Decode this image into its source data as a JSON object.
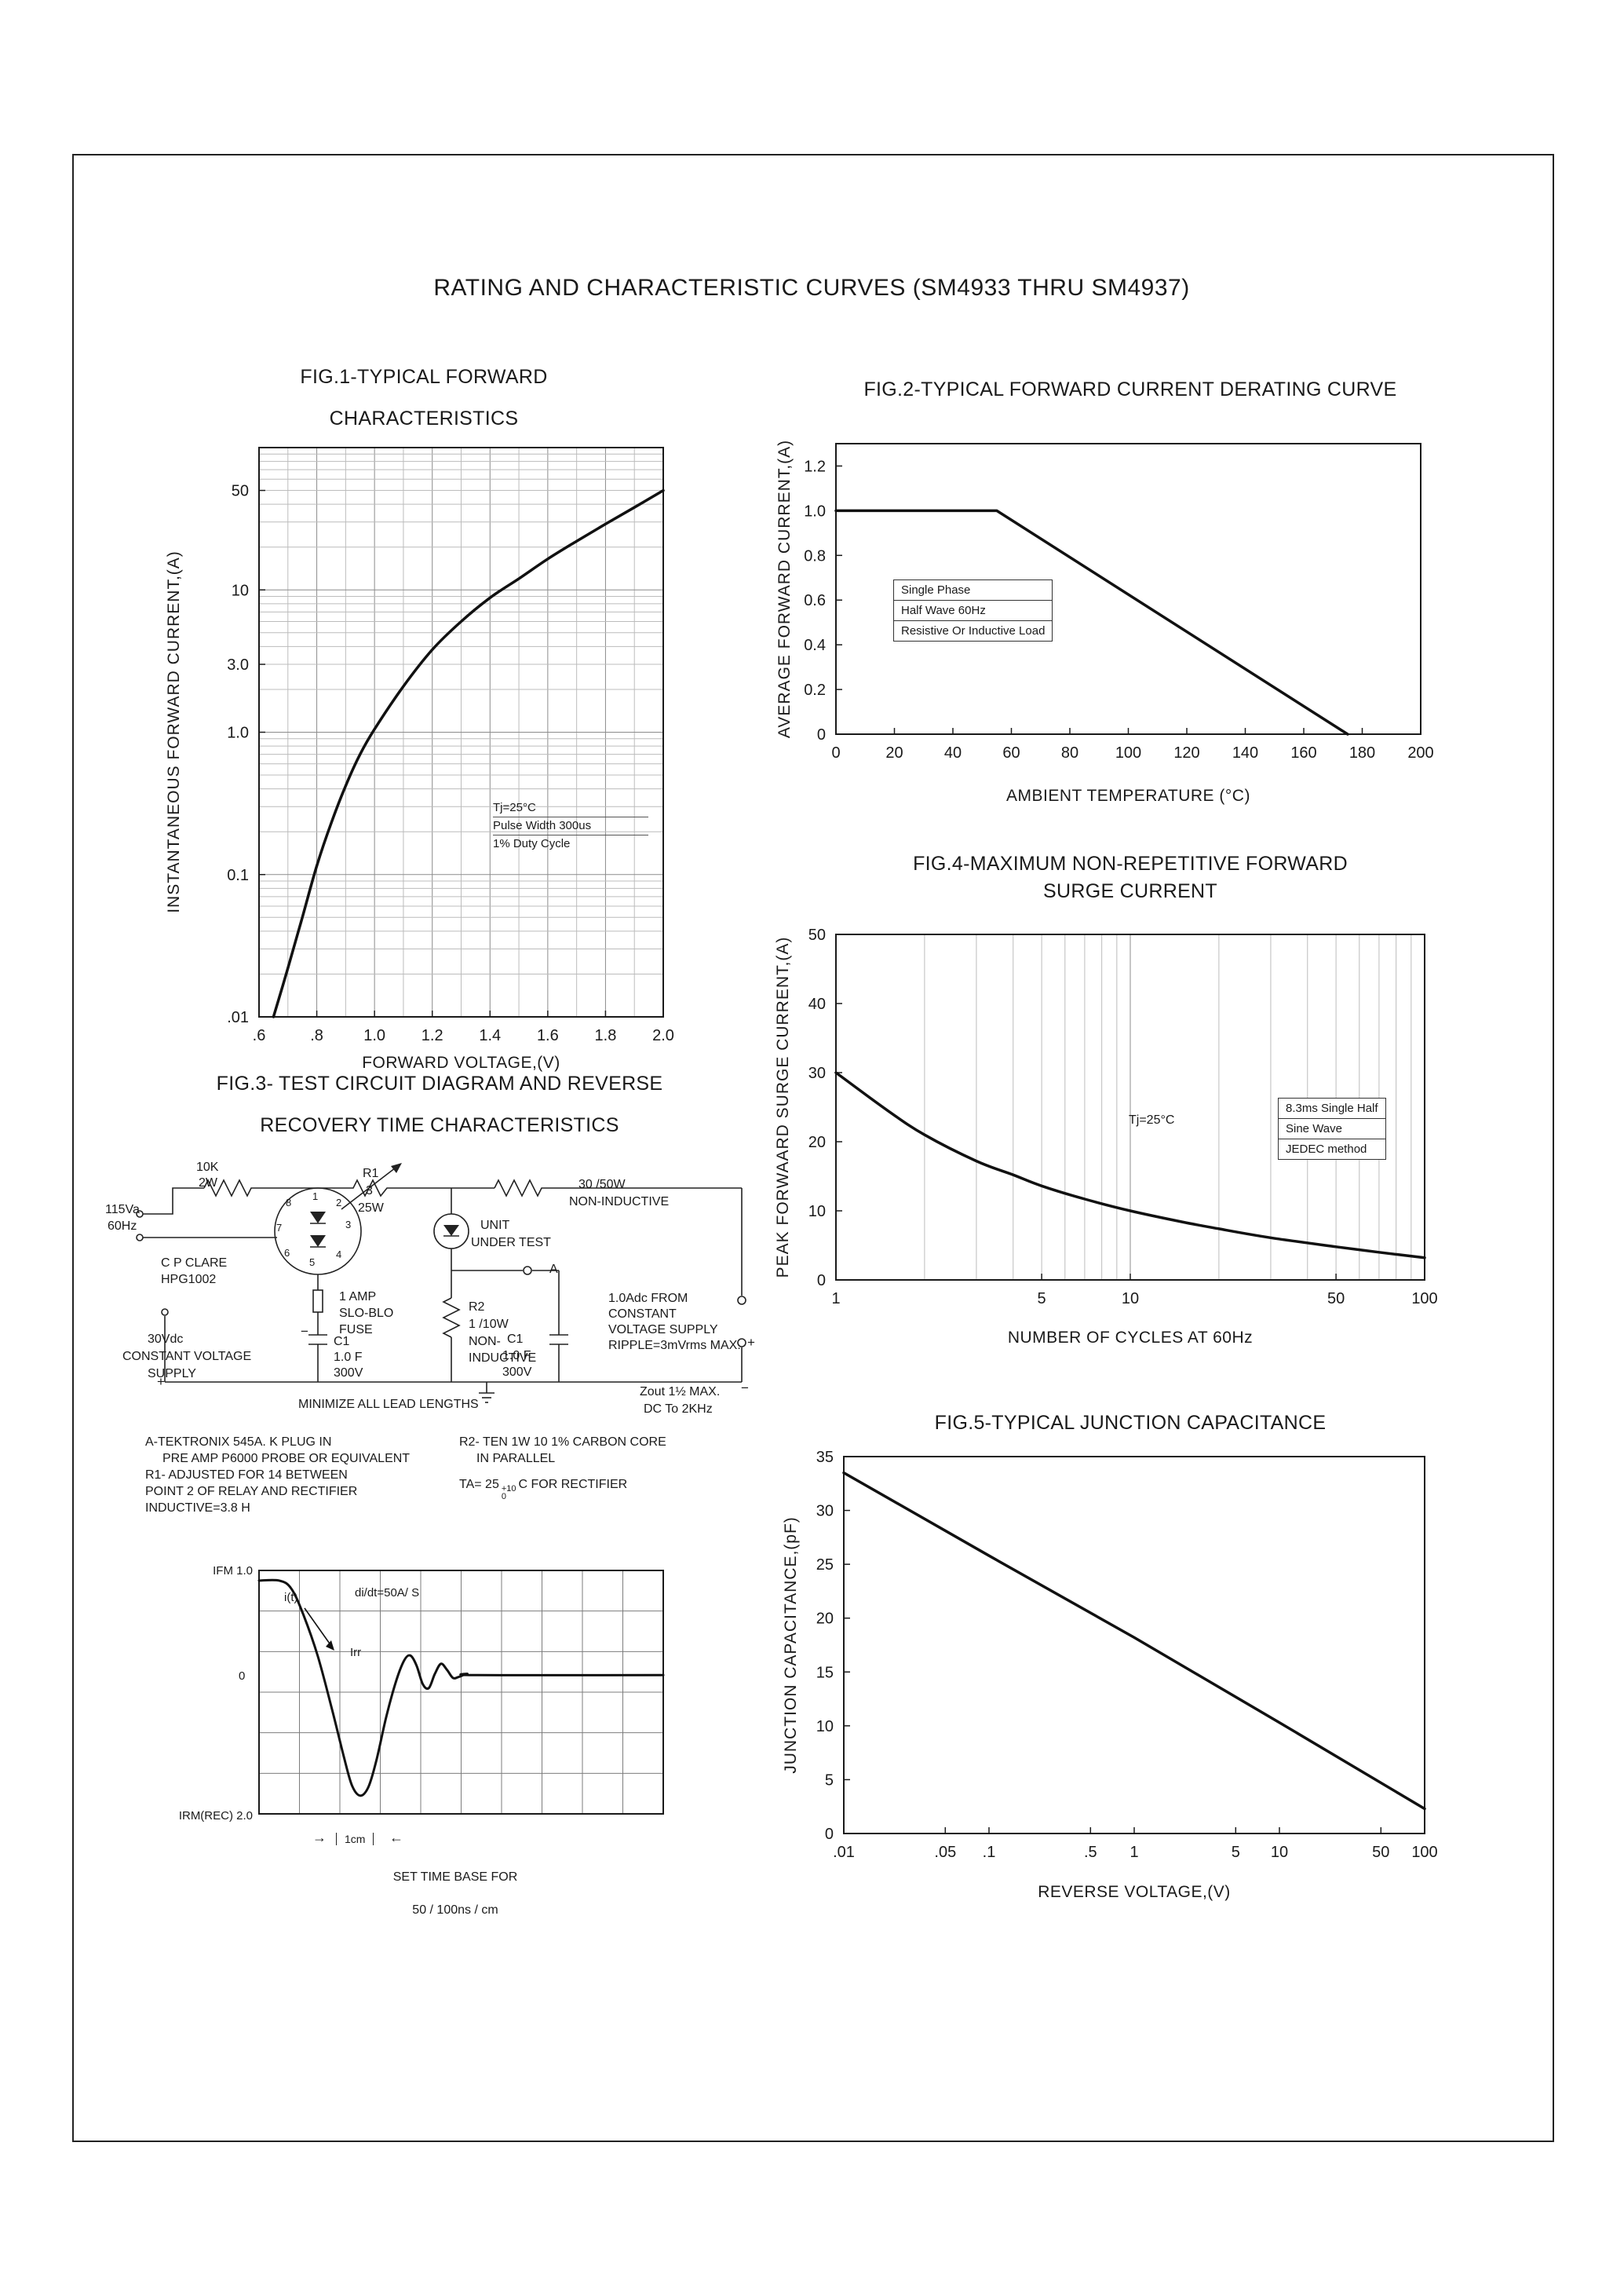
{
  "page": {
    "title": "RATING AND CHARACTERISTIC CURVES (SM4933 THRU SM4937)"
  },
  "fig3": {
    "title_line1": "FIG.3- TEST CIRCUIT DIAGRAM AND REVERSE",
    "title_line2": "RECOVERY TIME CHARACTERISTICS"
  },
  "icons": {
    "arrow_right": "→",
    "arrow_left": "←"
  },
  "circuit": {
    "labels": {
      "r_top1": "10K",
      "r_top2": "2W",
      "mains1": "115Va",
      "mains2": "60Hz",
      "relay1": "C P CLARE",
      "relay2": "HPG1002",
      "r1_1": "R1",
      "r1_2": "3",
      "r1_3": "25W",
      "load1": "30  /50W",
      "load2": "NON-INDUCTIVE",
      "uut1": "UNIT",
      "uut2": "UNDER TEST",
      "fuse1": "1 AMP",
      "fuse2": "SLO-BLO",
      "fuse3": "FUSE",
      "r2_1": "R2",
      "r2_2": "1  /10W",
      "r2_3": "NON-",
      "r2_4": "INDUCTIVE",
      "c1l_1": "C1",
      "c1l_2": "1.0  F",
      "c1l_3": "300V",
      "c1r_1": "C1",
      "c1r_2": "1.0  F",
      "c1r_3": "300V",
      "supply1": "30Vdc",
      "supply2": "CONSTANT VOLTAGE",
      "supply3": "SUPPLY",
      "minimize": "MINIMIZE ALL LEAD LENGTHS",
      "src1": "1.0Adc FROM",
      "src2": "CONSTANT",
      "src3": "VOLTAGE SUPPLY",
      "src4": "RIPPLE=3mVrms MAX.",
      "zout1": "Zout 1½  MAX.",
      "zout2": "DC To 2KHz",
      "point_a": "A"
    },
    "pins": [
      "1",
      "2",
      "3",
      "4",
      "5",
      "6",
      "7",
      "8"
    ],
    "signs": {
      "m1": "−",
      "p1": "+",
      "p2": "+",
      "m2": "−"
    },
    "notes_left": [
      "A-TEKTRONIX 545A. K PLUG IN",
      "PRE AMP P6000 PROBE OR EQUIVALENT",
      "R1- ADJUSTED FOR 14  BETWEEN",
      "POINT 2 OF RELAY AND RECTIFIER",
      "INDUCTIVE=3.8  H"
    ],
    "notes_right": [
      "R2- TEN 1W 10   1% CARBON CORE",
      "IN PARALLEL"
    ],
    "ta": {
      "pre": "TA= 25",
      "sup": "+10",
      "sub": "0",
      "post": "C FOR RECTIFIER"
    }
  },
  "chart_data": [
    {
      "type": "line",
      "title_line1": "FIG.1-TYPICAL FORWARD",
      "title_line2": "CHARACTERISTICS",
      "xlabel": "FORWARD VOLTAGE,(V)",
      "ylabel": "INSTANTANEOUS FORWARD CURRENT,(A)",
      "annotation": [
        "Tj=25°C",
        "Pulse Width 300us",
        "1% Duty Cycle"
      ],
      "x": {
        "type": "linear",
        "min": 0.6,
        "max": 2.0,
        "grid_step": 0.1,
        "major_step": 0.2,
        "ticks": [
          [
            0.6,
            ".6"
          ],
          [
            0.8,
            ".8"
          ],
          [
            1.0,
            "1.0"
          ],
          [
            1.2,
            "1.2"
          ],
          [
            1.4,
            "1.4"
          ],
          [
            1.6,
            "1.6"
          ],
          [
            1.8,
            "1.8"
          ],
          [
            2.0,
            "2.0"
          ]
        ]
      },
      "y": {
        "type": "log",
        "min": 0.01,
        "max": 100,
        "grid": "log",
        "ticks": [
          [
            50,
            "50"
          ],
          [
            10,
            "10"
          ],
          [
            3,
            "3.0"
          ],
          [
            1,
            "1.0"
          ],
          [
            0.1,
            "0.1"
          ],
          [
            0.01,
            ".01"
          ]
        ]
      },
      "series": [
        {
          "name": "forward-characteristic",
          "smooth": true,
          "points": [
            [
              0.65,
              0.01
            ],
            [
              0.7,
              0.022
            ],
            [
              0.75,
              0.05
            ],
            [
              0.8,
              0.115
            ],
            [
              0.85,
              0.23
            ],
            [
              0.9,
              0.42
            ],
            [
              0.95,
              0.7
            ],
            [
              1.0,
              1.05
            ],
            [
              1.1,
              2.1
            ],
            [
              1.2,
              3.8
            ],
            [
              1.3,
              6.0
            ],
            [
              1.4,
              8.8
            ],
            [
              1.5,
              12
            ],
            [
              1.6,
              16.5
            ],
            [
              1.7,
              22
            ],
            [
              1.8,
              29
            ],
            [
              1.9,
              38
            ],
            [
              2.0,
              50
            ]
          ]
        }
      ]
    },
    {
      "type": "line",
      "title": "FIG.2-TYPICAL FORWARD CURRENT DERATING CURVE",
      "xlabel": "AMBIENT TEMPERATURE (°C)",
      "ylabel": "AVERAGE FORWARD CURRENT,(A)",
      "annotation": [
        "Single Phase",
        "Half Wave 60Hz",
        "Resistive Or Inductive Load"
      ],
      "x": {
        "type": "linear",
        "min": 0,
        "max": 200,
        "ticks": [
          [
            0,
            "0"
          ],
          [
            20,
            "20"
          ],
          [
            40,
            "40"
          ],
          [
            60,
            "60"
          ],
          [
            80,
            "80"
          ],
          [
            100,
            "100"
          ],
          [
            120,
            "120"
          ],
          [
            140,
            "140"
          ],
          [
            160,
            "160"
          ],
          [
            180,
            "180"
          ],
          [
            200,
            "200"
          ]
        ]
      },
      "y": {
        "type": "linear",
        "min": 0,
        "max": 1.3,
        "ticks": [
          [
            0,
            "0"
          ],
          [
            0.2,
            "0.2"
          ],
          [
            0.4,
            "0.4"
          ],
          [
            0.6,
            "0.6"
          ],
          [
            0.8,
            "0.8"
          ],
          [
            1.0,
            "1.0"
          ],
          [
            1.2,
            "1.2"
          ]
        ]
      },
      "series": [
        {
          "name": "derating-curve",
          "smooth": false,
          "points": [
            [
              0,
              1.0
            ],
            [
              55,
              1.0
            ],
            [
              175,
              0
            ]
          ]
        }
      ]
    },
    {
      "type": "line",
      "title_line1": "FIG.4-MAXIMUM NON-REPETITIVE FORWARD",
      "title_line2": "SURGE CURRENT",
      "xlabel": "NUMBER OF CYCLES AT 60Hz",
      "ylabel": "PEAK FORWAARD SURGE CURRENT,(A)",
      "annotation_tj": "Tj=25°C",
      "annotation_box": [
        "8.3ms Single Half",
        "Sine Wave",
        "JEDEC method"
      ],
      "x": {
        "type": "log",
        "min": 1,
        "max": 100,
        "grid": "log",
        "ticks": [
          [
            1,
            "1"
          ],
          [
            5,
            "5"
          ],
          [
            10,
            "10"
          ],
          [
            50,
            "50"
          ],
          [
            100,
            "100"
          ]
        ]
      },
      "y": {
        "type": "linear",
        "min": 0,
        "max": 50,
        "ticks": [
          [
            0,
            "0"
          ],
          [
            10,
            "10"
          ],
          [
            20,
            "20"
          ],
          [
            30,
            "30"
          ],
          [
            40,
            "40"
          ],
          [
            50,
            "50"
          ]
        ]
      },
      "series": [
        {
          "name": "surge-current",
          "smooth": true,
          "points": [
            [
              1,
              30
            ],
            [
              1.5,
              24.5
            ],
            [
              2,
              21
            ],
            [
              3,
              17.2
            ],
            [
              4,
              15.2
            ],
            [
              5,
              13.6
            ],
            [
              7,
              11.7
            ],
            [
              10,
              10
            ],
            [
              15,
              8.4
            ],
            [
              20,
              7.4
            ],
            [
              30,
              6.1
            ],
            [
              50,
              4.8
            ],
            [
              70,
              4.0
            ],
            [
              100,
              3.2
            ]
          ]
        }
      ]
    },
    {
      "type": "line",
      "title": "FIG.5-TYPICAL JUNCTION CAPACITANCE",
      "xlabel": "REVERSE VOLTAGE,(V)",
      "ylabel": "JUNCTION CAPACITANCE,(pF)",
      "x": {
        "type": "log",
        "min": 0.01,
        "max": 100,
        "ticks": [
          [
            0.01,
            ".01"
          ],
          [
            0.05,
            ".05"
          ],
          [
            0.1,
            ".1"
          ],
          [
            0.5,
            ".5"
          ],
          [
            1,
            "1"
          ],
          [
            5,
            "5"
          ],
          [
            10,
            "10"
          ],
          [
            50,
            "50"
          ],
          [
            100,
            "100"
          ]
        ]
      },
      "y": {
        "type": "linear",
        "min": 0,
        "max": 35,
        "ticks": [
          [
            0,
            "0"
          ],
          [
            5,
            "5"
          ],
          [
            10,
            "10"
          ],
          [
            15,
            "15"
          ],
          [
            20,
            "20"
          ],
          [
            25,
            "25"
          ],
          [
            30,
            "30"
          ],
          [
            35,
            "35"
          ]
        ]
      },
      "series": [
        {
          "name": "junction-capacitance",
          "smooth": false,
          "points": [
            [
              0.01,
              33.5
            ],
            [
              0.1,
              25.8
            ],
            [
              1,
              18.2
            ],
            [
              10,
              10.3
            ],
            [
              100,
              2.3
            ]
          ]
        }
      ]
    },
    {
      "type": "waveform",
      "labels": {
        "ifm": "IFM 1.0",
        "it": "i(t)",
        "didt": "di/dt=50A/ S",
        "irr": "Irr",
        "zero": "0",
        "irm": "IRM(REC) 2.0",
        "cm": "1cm",
        "set1": "SET TIME BASE FOR",
        "set2": "50 / 100ns / cm"
      },
      "minor_color": "#7d7d7d",
      "x": {
        "type": "linear",
        "min": 0,
        "max": 10,
        "grid_step": 1
      },
      "y": {
        "type": "linear",
        "min": 0,
        "max": 6,
        "grid_step": 1
      },
      "series": [
        {
          "name": "reverse-recovery-trace",
          "smooth": true,
          "width": 3,
          "points": [
            [
              0,
              5.75
            ],
            [
              0.5,
              5.75
            ],
            [
              0.8,
              5.55
            ],
            [
              1.1,
              4.9
            ],
            [
              1.45,
              3.9
            ],
            [
              1.8,
              2.6
            ],
            [
              2.1,
              1.4
            ],
            [
              2.3,
              0.7
            ],
            [
              2.5,
              0.45
            ],
            [
              2.7,
              0.65
            ],
            [
              2.9,
              1.3
            ],
            [
              3.15,
              2.4
            ],
            [
              3.4,
              3.3
            ],
            [
              3.6,
              3.8
            ],
            [
              3.75,
              3.9
            ],
            [
              3.9,
              3.65
            ],
            [
              4.05,
              3.2
            ],
            [
              4.2,
              3.1
            ],
            [
              4.35,
              3.45
            ],
            [
              4.5,
              3.7
            ],
            [
              4.65,
              3.55
            ],
            [
              4.8,
              3.35
            ],
            [
              4.95,
              3.38
            ],
            [
              5.15,
              3.45
            ],
            [
              5.4,
              3.42
            ],
            [
              10,
              3.42
            ]
          ]
        }
      ]
    }
  ]
}
